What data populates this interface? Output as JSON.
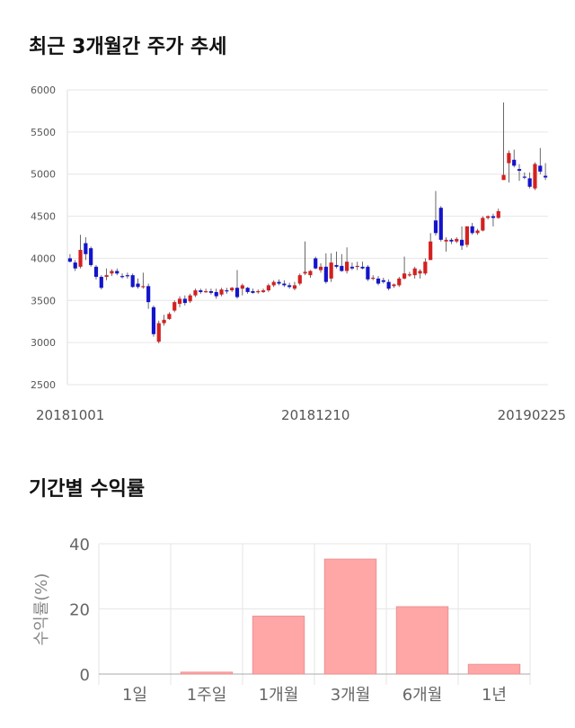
{
  "sections": {
    "price_title": "최근 3개월간 주가 추세",
    "return_title": "기간별 수익률"
  },
  "colors": {
    "up": "#d42020",
    "down": "#1414cc",
    "bar": "#ffa6a6",
    "bar_stroke": "#e88a8a",
    "grid": "#e6e6e6"
  },
  "chart_data": [
    {
      "type": "candlestick",
      "title": "",
      "ylim": [
        2500,
        6000
      ],
      "y_ticks": [
        6000,
        5500,
        5000,
        4500,
        4000,
        3500,
        3000,
        2500
      ],
      "x_tick_labels": [
        {
          "label": "20181001",
          "index": 0
        },
        {
          "label": "20181210",
          "index": 47
        },
        {
          "label": "20190225",
          "index": 99
        }
      ],
      "grid": "horizontal",
      "candles": [
        [
          4000,
          4050,
          3950,
          3960
        ],
        [
          3950,
          3980,
          3850,
          3880
        ],
        [
          3900,
          4280,
          3880,
          4100
        ],
        [
          4180,
          4250,
          3980,
          4050
        ],
        [
          4120,
          4140,
          3900,
          3920
        ],
        [
          3900,
          3920,
          3750,
          3780
        ],
        [
          3780,
          3800,
          3630,
          3650
        ],
        [
          3780,
          3880,
          3740,
          3800
        ],
        [
          3820,
          3870,
          3790,
          3850
        ],
        [
          3850,
          3880,
          3800,
          3820
        ],
        [
          3790,
          3820,
          3760,
          3780
        ],
        [
          3800,
          3830,
          3760,
          3790
        ],
        [
          3800,
          3820,
          3650,
          3660
        ],
        [
          3700,
          3760,
          3640,
          3660
        ],
        [
          3660,
          3830,
          3640,
          3670
        ],
        [
          3670,
          3700,
          3400,
          3480
        ],
        [
          3420,
          3440,
          3070,
          3100
        ],
        [
          3010,
          3260,
          2990,
          3230
        ],
        [
          3230,
          3330,
          3200,
          3270
        ],
        [
          3280,
          3360,
          3270,
          3340
        ],
        [
          3380,
          3500,
          3360,
          3480
        ],
        [
          3460,
          3550,
          3420,
          3520
        ],
        [
          3520,
          3560,
          3440,
          3470
        ],
        [
          3490,
          3580,
          3470,
          3560
        ],
        [
          3560,
          3640,
          3540,
          3620
        ],
        [
          3620,
          3640,
          3580,
          3600
        ],
        [
          3600,
          3640,
          3590,
          3610
        ],
        [
          3610,
          3640,
          3570,
          3590
        ],
        [
          3600,
          3640,
          3520,
          3550
        ],
        [
          3570,
          3650,
          3550,
          3630
        ],
        [
          3620,
          3650,
          3580,
          3610
        ],
        [
          3620,
          3660,
          3600,
          3650
        ],
        [
          3650,
          3860,
          3520,
          3540
        ],
        [
          3640,
          3700,
          3560,
          3680
        ],
        [
          3650,
          3660,
          3580,
          3600
        ],
        [
          3610,
          3640,
          3580,
          3590
        ],
        [
          3600,
          3630,
          3580,
          3610
        ],
        [
          3600,
          3640,
          3590,
          3620
        ],
        [
          3620,
          3700,
          3600,
          3680
        ],
        [
          3680,
          3740,
          3660,
          3720
        ],
        [
          3720,
          3750,
          3680,
          3700
        ],
        [
          3700,
          3740,
          3660,
          3680
        ],
        [
          3680,
          3710,
          3640,
          3660
        ],
        [
          3640,
          3720,
          3620,
          3680
        ],
        [
          3700,
          3820,
          3680,
          3800
        ],
        [
          3820,
          4200,
          3800,
          3840
        ],
        [
          3800,
          3860,
          3770,
          3850
        ],
        [
          4000,
          4020,
          3870,
          3880
        ],
        [
          3860,
          3940,
          3830,
          3900
        ],
        [
          3900,
          4060,
          3700,
          3720
        ],
        [
          3760,
          4060,
          3720,
          3950
        ],
        [
          3920,
          4080,
          3880,
          3900
        ],
        [
          3910,
          4050,
          3840,
          3850
        ],
        [
          3850,
          4130,
          3820,
          3960
        ],
        [
          3900,
          3950,
          3860,
          3880
        ],
        [
          3900,
          3960,
          3860,
          3910
        ],
        [
          3900,
          3960,
          3870,
          3880
        ],
        [
          3900,
          3920,
          3730,
          3750
        ],
        [
          3760,
          3800,
          3740,
          3770
        ],
        [
          3760,
          3790,
          3680,
          3700
        ],
        [
          3740,
          3770,
          3700,
          3720
        ],
        [
          3720,
          3750,
          3620,
          3640
        ],
        [
          3670,
          3700,
          3650,
          3690
        ],
        [
          3680,
          3780,
          3660,
          3760
        ],
        [
          3760,
          4020,
          3750,
          3820
        ],
        [
          3800,
          3840,
          3780,
          3810
        ],
        [
          3800,
          3900,
          3760,
          3880
        ],
        [
          3820,
          3870,
          3760,
          3850
        ],
        [
          3820,
          4000,
          3800,
          3960
        ],
        [
          3980,
          4300,
          3980,
          4200
        ],
        [
          4450,
          4800,
          4270,
          4300
        ],
        [
          4600,
          4620,
          4200,
          4220
        ],
        [
          4200,
          4250,
          4080,
          4220
        ],
        [
          4220,
          4240,
          4170,
          4200
        ],
        [
          4200,
          4250,
          4180,
          4230
        ],
        [
          4220,
          4380,
          4100,
          4150
        ],
        [
          4160,
          4380,
          4130,
          4380
        ],
        [
          4380,
          4420,
          4280,
          4300
        ],
        [
          4300,
          4350,
          4280,
          4330
        ],
        [
          4330,
          4500,
          4320,
          4480
        ],
        [
          4480,
          4510,
          4460,
          4500
        ],
        [
          4500,
          4530,
          4380,
          4480
        ],
        [
          4480,
          4590,
          4470,
          4560
        ],
        [
          4930,
          5850,
          4930,
          4990
        ],
        [
          5130,
          5280,
          4900,
          5250
        ],
        [
          5170,
          5290,
          5080,
          5100
        ],
        [
          5060,
          5120,
          4920,
          5040
        ],
        [
          4970,
          5020,
          4940,
          4960
        ],
        [
          4950,
          5020,
          4830,
          4850
        ],
        [
          4830,
          5140,
          4810,
          5120
        ],
        [
          5100,
          5310,
          5000,
          5030
        ],
        [
          4980,
          5130,
          4930,
          4960
        ]
      ]
    },
    {
      "type": "bar",
      "title": "",
      "ylabel": "수익률(%)",
      "ylim": [
        0,
        40
      ],
      "y_ticks": [
        0,
        20,
        40
      ],
      "grid": "both",
      "categories": [
        "1일",
        "1주일",
        "1개월",
        "3개월",
        "6개월",
        "1년"
      ],
      "values": [
        0,
        0.6,
        17.8,
        35.3,
        20.7,
        3.0
      ]
    }
  ]
}
